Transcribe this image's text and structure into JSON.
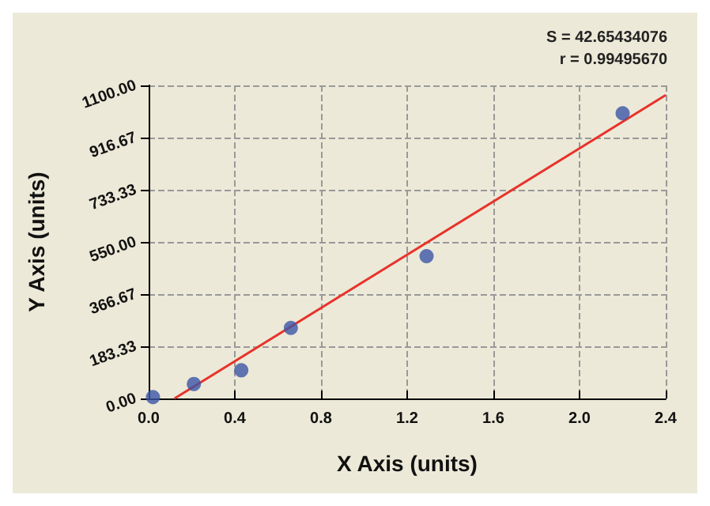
{
  "chart_data": {
    "type": "scatter",
    "xlabel": "X Axis (units)",
    "ylabel": "Y Axis (units)",
    "annotations": [
      "S = 42.65434076",
      "r = 0.99495670"
    ],
    "series": [
      {
        "color": "#3b55a6",
        "x": [
          0.02,
          0.21,
          0.43,
          0.66,
          1.29,
          2.2
        ],
        "values": [
          5,
          51,
          99,
          248,
          500,
          1002
        ],
        "marker": "circle"
      },
      {
        "type": "line",
        "color": "#e8322a",
        "x": [
          0.12,
          2.4
        ],
        "values": [
          0,
          1066
        ],
        "marker": "none",
        "line_style": "solid"
      }
    ],
    "xlim": [
      0,
      2.4
    ],
    "xticks": [
      {
        "value": 0,
        "label": "0.0"
      },
      0.4,
      0.8,
      1.2,
      1.6,
      {
        "value": 2,
        "label": "2.0"
      },
      2.4
    ],
    "ylim": [
      0,
      1100
    ],
    "yticks": [
      {
        "value": 0,
        "label": "0.00"
      },
      {
        "value": 183.33,
        "label": "183.33"
      },
      {
        "value": 366.67,
        "label": "366.67"
      },
      {
        "value": 550,
        "label": "550.00"
      },
      {
        "value": 733.33,
        "label": "733.33"
      },
      {
        "value": 916.67,
        "label": "916.67"
      },
      {
        "value": 1100,
        "label": "1100.00"
      }
    ],
    "grid": true
  }
}
